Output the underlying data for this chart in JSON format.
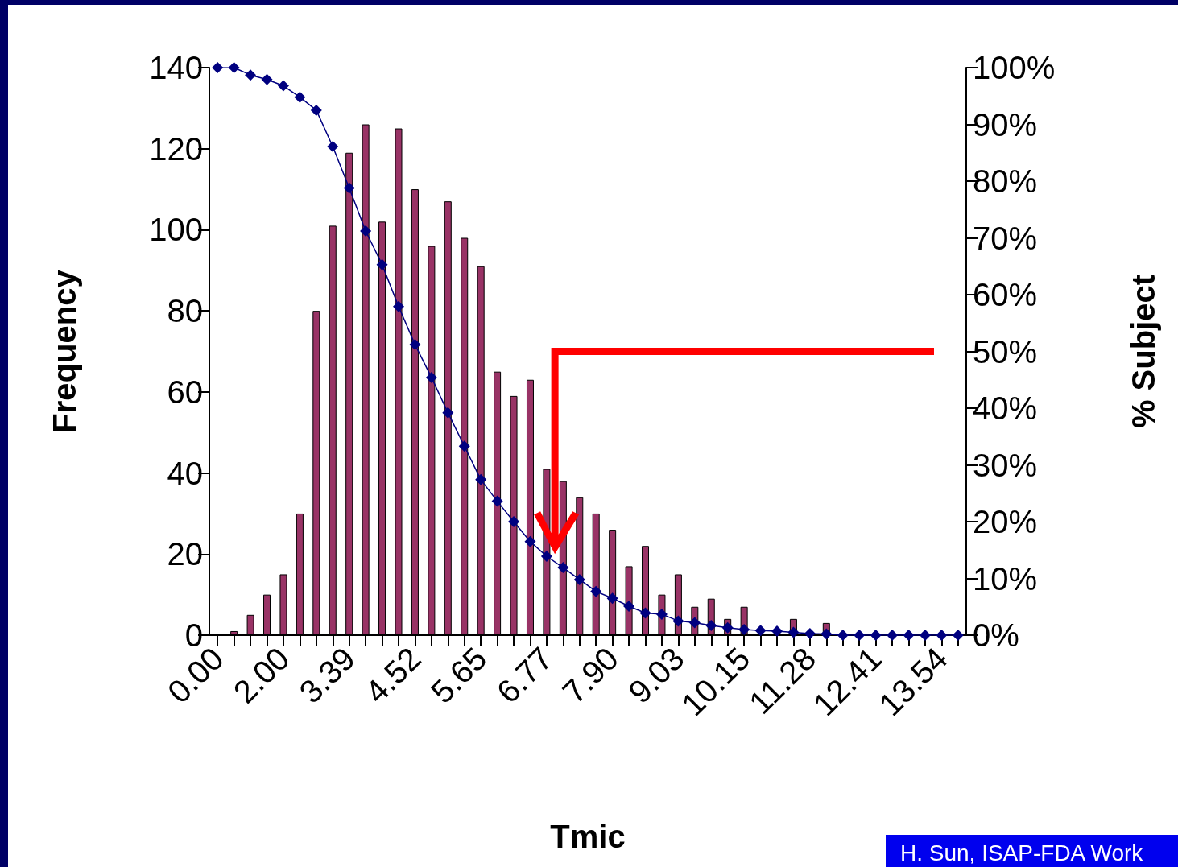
{
  "chart_data": {
    "type": "bar",
    "xlabel": "Tmic",
    "ylabel": "Frequency",
    "y2label": "% Subject",
    "categories": [
      "0.00",
      null,
      null,
      null,
      "2.00",
      null,
      null,
      null,
      "3.39",
      null,
      null,
      null,
      "4.52",
      null,
      null,
      null,
      "5.65",
      null,
      null,
      null,
      "6.77",
      null,
      null,
      null,
      "7.90",
      null,
      null,
      null,
      "9.03",
      null,
      null,
      null,
      "10.15",
      null,
      null,
      null,
      "11.28",
      null,
      null,
      null,
      "12.41",
      null,
      null,
      null,
      "13.54",
      null
    ],
    "series": [
      {
        "color": "#993366",
        "values": [
          0,
          1,
          5,
          10,
          15,
          30,
          80,
          101,
          119,
          126,
          102,
          125,
          110,
          96,
          107,
          98,
          91,
          65,
          59,
          63,
          41,
          38,
          34,
          30,
          26,
          17,
          22,
          10,
          15,
          7,
          9,
          4,
          7,
          null,
          null,
          4,
          null,
          3,
          null,
          null,
          null,
          null,
          null,
          null,
          null,
          null
        ]
      },
      {
        "type": "line",
        "axis": "y2",
        "color": "#000080",
        "values": [
          100,
          100,
          98.7,
          97.9,
          96.8,
          94.8,
          92.5,
          86.1,
          78.8,
          71.2,
          65.3,
          57.9,
          51.2,
          45.4,
          39.2,
          33.3,
          27.4,
          23.6,
          20.0,
          16.5,
          13.9,
          11.9,
          9.8,
          7.7,
          6.5,
          5.1,
          3.9,
          3.7,
          2.5,
          2.2,
          1.7,
          1.3,
          1.0,
          0.8,
          0.7,
          0.5,
          0.3,
          0.2,
          0,
          0,
          0,
          0,
          0,
          0,
          0,
          0
        ]
      }
    ],
    "ylim": [
      0,
      140
    ],
    "yticks": [
      0,
      20,
      40,
      60,
      80,
      100,
      120,
      140
    ],
    "y2lim": [
      0,
      100
    ],
    "y2ticks": [
      {
        "value": 0,
        "label": "0%"
      },
      {
        "value": 10,
        "label": "10%"
      },
      {
        "value": 20,
        "label": "20%"
      },
      {
        "value": 30,
        "label": "30%"
      },
      {
        "value": 40,
        "label": "40%"
      },
      {
        "value": 50,
        "label": "50%"
      },
      {
        "value": 60,
        "label": "60%"
      },
      {
        "value": 70,
        "label": "70%"
      },
      {
        "value": 80,
        "label": "80%"
      },
      {
        "value": 90,
        "label": "90%"
      },
      {
        "value": 100,
        "label": "100%"
      }
    ],
    "grid": false,
    "marker": "diamond",
    "line_style": "solid",
    "annotations": [
      "H. Sun, ISAP-FDA Work"
    ]
  }
}
